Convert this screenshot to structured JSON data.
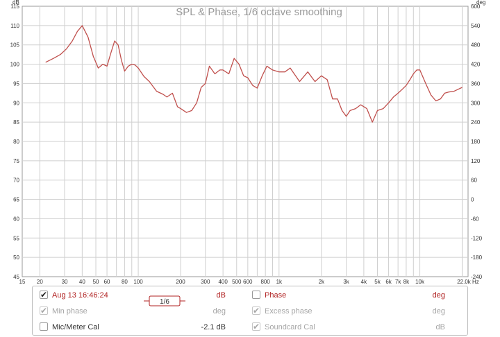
{
  "chart_data": {
    "type": "line",
    "title": "SPL & Phase, 1/6 octave smoothing",
    "y_left_unit": "dB",
    "y_right_unit": "deg",
    "x_unit": "Hz",
    "ylim": [
      45,
      115
    ],
    "y_right_lim": [
      -240,
      600
    ],
    "xlim": [
      15,
      22000
    ],
    "x_scale": "log",
    "grid": true,
    "x_ticks": [
      "15",
      "20",
      "30",
      "40",
      "50",
      "60",
      "80",
      "100",
      "200",
      "300",
      "400",
      "500",
      "600",
      "800",
      "1k",
      "2k",
      "3k",
      "4k",
      "5k",
      "6k",
      "7k",
      "8k",
      "10k",
      "22.0k Hz"
    ],
    "y_left_ticks": [
      "115",
      "110",
      "105",
      "100",
      "95",
      "90",
      "85",
      "80",
      "75",
      "70",
      "65",
      "60",
      "55",
      "50",
      "45"
    ],
    "y_right_ticks": [
      "600",
      "540",
      "480",
      "420",
      "360",
      "300",
      "240",
      "180",
      "120",
      "60",
      "0",
      "-60",
      "-120",
      "-180",
      "-240"
    ],
    "series": [
      {
        "color": "#c0504d",
        "x": [
          22,
          25,
          28,
          31,
          34,
          37,
          40,
          44,
          48,
          52,
          56,
          60,
          64,
          68,
          72,
          76,
          80,
          85,
          90,
          95,
          100,
          110,
          120,
          135,
          150,
          160,
          175,
          190,
          200,
          220,
          240,
          260,
          280,
          300,
          320,
          350,
          380,
          400,
          440,
          480,
          520,
          560,
          600,
          650,
          700,
          760,
          820,
          900,
          1000,
          1100,
          1200,
          1400,
          1600,
          1800,
          2000,
          2200,
          2400,
          2600,
          2800,
          3000,
          3200,
          3500,
          3800,
          4200,
          4600,
          5000,
          5500,
          6000,
          6500,
          7000,
          7500,
          8000,
          8500,
          9000,
          9500,
          10000,
          11000,
          12000,
          13000,
          14000,
          15000,
          16000,
          17500,
          20000
        ],
        "y": [
          100.5,
          101.5,
          102.5,
          104,
          106,
          108.5,
          110,
          107,
          102,
          99,
          100,
          99.5,
          103,
          106,
          105,
          101,
          98.2,
          99.5,
          100,
          99.8,
          99,
          96.8,
          95.5,
          93,
          92.2,
          91.5,
          92.5,
          89,
          88.5,
          87.5,
          88,
          90,
          94,
          95,
          99.5,
          97.5,
          98.5,
          98.5,
          97.5,
          101.5,
          100,
          97,
          96.5,
          94.5,
          93.8,
          97,
          99.5,
          98.5,
          98,
          98,
          99,
          95.5,
          98,
          95.5,
          97,
          96,
          91,
          91,
          88,
          86.5,
          88,
          88.5,
          89.5,
          88.5,
          85,
          88,
          88.5,
          90,
          91.5,
          92.5,
          93.5,
          94.5,
          96,
          97.5,
          98.5,
          98.5,
          95,
          92,
          90.5,
          91,
          92.5,
          92.8,
          93,
          94
        ]
      }
    ]
  },
  "legend": {
    "row1": {
      "checked": "✔",
      "label": "Aug 13 16:46:24",
      "smoothing": "1/6",
      "unit": "dB"
    },
    "row1b": {
      "checked": "",
      "label": "Phase",
      "unit": "deg"
    },
    "row2": {
      "checked": "✔",
      "label": "Min phase",
      "unit": "deg"
    },
    "row2b": {
      "checked": "✔",
      "label": "Excess phase",
      "unit": "deg"
    },
    "row3": {
      "checked": "",
      "label": "Mic/Meter Cal",
      "value": "-2.1 dB"
    },
    "row3b": {
      "checked": "✔",
      "label": "Soundcard Cal",
      "unit": "dB"
    }
  }
}
